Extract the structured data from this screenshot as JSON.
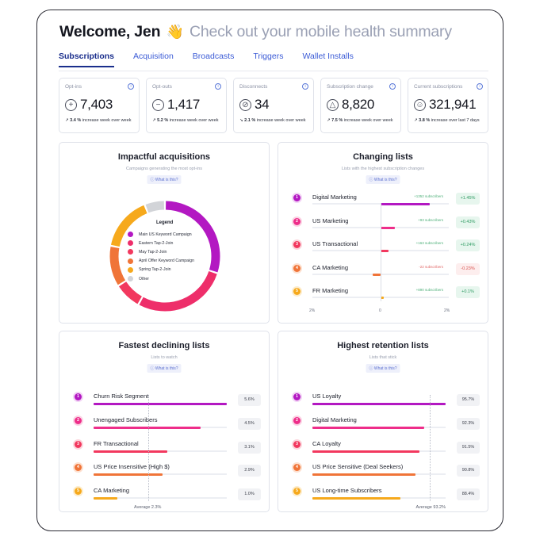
{
  "header": {
    "title": "Welcome, Jen",
    "emoji": "👋",
    "subtitle": "Check out your mobile health summary"
  },
  "tabs": [
    {
      "label": "Subscriptions",
      "active": true
    },
    {
      "label": "Acquisition",
      "active": false
    },
    {
      "label": "Broadcasts",
      "active": false
    },
    {
      "label": "Triggers",
      "active": false
    },
    {
      "label": "Wallet Installs",
      "active": false
    }
  ],
  "stats": [
    {
      "label": "Opt-ins",
      "icon": "plus-circle-icon",
      "glyph": "+",
      "value": "7,403",
      "trend": "↗",
      "change": "3.4 %",
      "period": "increase week over week"
    },
    {
      "label": "Opt-outs",
      "icon": "minus-circle-icon",
      "glyph": "−",
      "value": "1,417",
      "trend": "↗",
      "change": "5.2 %",
      "period": "increase week over week"
    },
    {
      "label": "Disconnects",
      "icon": "disconnect-icon",
      "glyph": "⊘",
      "value": "34",
      "trend": "↘",
      "change": "2.1 %",
      "period": "increase week over week"
    },
    {
      "label": "Subscription change",
      "icon": "delta-icon",
      "glyph": "△",
      "value": "8,820",
      "trend": "↗",
      "change": "7.5 %",
      "period": "increase week over week"
    },
    {
      "label": "Current subscriptions",
      "icon": "subscriber-icon",
      "glyph": "☺",
      "value": "321,941",
      "trend": "↗",
      "change": "3.8 %",
      "period": "increase over last 7 days"
    }
  ],
  "what_is_this": "ⓘ What is this?",
  "acquisitions": {
    "title": "Impactful acquisitions",
    "subtitle": "Campaigns generating the most opt-ins",
    "legend_title": "Legend",
    "slices": [
      {
        "name": "Main US Keyword Campaign",
        "value": 30,
        "color": "#b318c2"
      },
      {
        "name": "Eastern Tap-2-Join",
        "value": 28,
        "color": "#ee2e6a"
      },
      {
        "name": "May Tap-2-Join",
        "value": 8,
        "color": "#f2385e"
      },
      {
        "name": "April Offer Keyword Campaign",
        "value": 12,
        "color": "#f07438"
      },
      {
        "name": "Spring Tap-2-Join",
        "value": 16,
        "color": "#f6a91c"
      },
      {
        "name": "Other",
        "value": 6,
        "color": "#d2d4d8"
      }
    ]
  },
  "changing": {
    "title": "Changing lists",
    "subtitle": "Lists with the highest subscription changes",
    "axis": {
      "min_label": "2%",
      "zero_label": "0",
      "max_label": "2%",
      "max": 2
    },
    "items": [
      {
        "rank": "1",
        "name": "Digital Marketing",
        "subs": "+1352 subscribers",
        "delta": "+1.45%",
        "value": 1.45,
        "color": "#b318c2",
        "ring": "#f2d3f5"
      },
      {
        "rank": "2",
        "name": "US Marketing",
        "subs": "+93 subscribers",
        "delta": "+0.43%",
        "value": 0.43,
        "color": "#ee2e8a",
        "ring": "#fbd3e4"
      },
      {
        "rank": "3",
        "name": "US Transactional",
        "subs": "+163 subscribers",
        "delta": "+0.24%",
        "value": 0.24,
        "color": "#f2385e",
        "ring": "#fcd5dc"
      },
      {
        "rank": "4",
        "name": "CA Marketing",
        "subs": "-22 subscribers",
        "delta": "-0.23%",
        "value": -0.23,
        "color": "#f07438",
        "ring": "#fde0cf"
      },
      {
        "rank": "5",
        "name": "FR Marketing",
        "subs": "+890 subscribers",
        "delta": "+0.1%",
        "value": 0.1,
        "color": "#f6a91c",
        "ring": "#fdeccb"
      }
    ]
  },
  "declining": {
    "title": "Fastest declining lists",
    "subtitle": "Lists to watch",
    "average_label": "Average 2.3%",
    "average": 2.3,
    "max": 5.6,
    "items": [
      {
        "rank": "1",
        "name": "Churn Risk Segment",
        "pct": "5.6%",
        "value": 5.6,
        "color": "#b318c2",
        "ring": "#f2d3f5"
      },
      {
        "rank": "2",
        "name": "Unengaged Subscribers",
        "pct": "4.5%",
        "value": 4.5,
        "color": "#ee2e8a",
        "ring": "#fbd3e4"
      },
      {
        "rank": "3",
        "name": "FR Transactional",
        "pct": "3.1%",
        "value": 3.1,
        "color": "#f2385e",
        "ring": "#fcd5dc"
      },
      {
        "rank": "4",
        "name": "US Price Insensitive (High $)",
        "pct": "2.9%",
        "value": 2.9,
        "color": "#f07438",
        "ring": "#fde0cf"
      },
      {
        "rank": "5",
        "name": "CA Marketing",
        "pct": "1.0%",
        "value": 1.0,
        "color": "#f6a91c",
        "ring": "#fdeccb"
      }
    ]
  },
  "retention": {
    "title": "Highest retention lists",
    "subtitle": "Lists that stick",
    "average_label": "Average 93.2%",
    "average": 93.2,
    "min": 80,
    "max": 95.7,
    "items": [
      {
        "rank": "1",
        "name": "US Loyalty",
        "pct": "95.7%",
        "value": 95.7,
        "color": "#b318c2",
        "ring": "#f2d3f5"
      },
      {
        "rank": "2",
        "name": "Digital Marketing",
        "pct": "92.3%",
        "value": 92.3,
        "color": "#ee2e8a",
        "ring": "#fbd3e4"
      },
      {
        "rank": "3",
        "name": "CA Loyalty",
        "pct": "91.5%",
        "value": 91.5,
        "color": "#f2385e",
        "ring": "#fcd5dc"
      },
      {
        "rank": "4",
        "name": "US Price Sensitive (Deal Seekers)",
        "pct": "90.8%",
        "value": 90.8,
        "color": "#f07438",
        "ring": "#fde0cf"
      },
      {
        "rank": "5",
        "name": "US Long-time Subscribers",
        "pct": "88.4%",
        "value": 88.4,
        "color": "#f6a91c",
        "ring": "#fdeccb"
      }
    ]
  }
}
